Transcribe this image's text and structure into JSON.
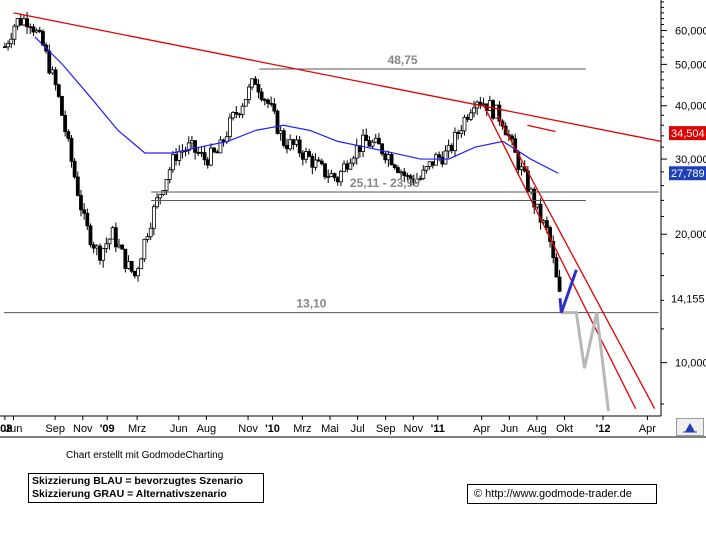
{
  "chart_data": {
    "type": "candlestick",
    "title": "",
    "y_axis": {
      "scale": "log",
      "ticks": [
        10000,
        20000,
        30000,
        40000,
        50000,
        60000
      ],
      "tick_labels": [
        "10,000",
        "20,000",
        "30,000",
        "40,000",
        "50,000",
        "60,000"
      ],
      "range": [
        7500,
        70000
      ]
    },
    "x_axis": {
      "range": [
        "2008-05-25",
        "2012-05-15"
      ],
      "ticks": [
        {
          "label": "'08",
          "date": "2008-05-27",
          "bold": true
        },
        {
          "label": "Jun",
          "date": "2008-06-15",
          "bold": false
        },
        {
          "label": "Sep",
          "date": "2008-09-15",
          "bold": false
        },
        {
          "label": "Nov",
          "date": "2008-11-15",
          "bold": false
        },
        {
          "label": "'09",
          "date": "2009-01-08",
          "bold": true
        },
        {
          "label": "Mrz",
          "date": "2009-03-15",
          "bold": false
        },
        {
          "label": "Jun",
          "date": "2009-06-15",
          "bold": false
        },
        {
          "label": "Aug",
          "date": "2009-08-15",
          "bold": false
        },
        {
          "label": "Nov",
          "date": "2009-11-15",
          "bold": false
        },
        {
          "label": "'10",
          "date": "2010-01-08",
          "bold": true
        },
        {
          "label": "Mrz",
          "date": "2010-03-15",
          "bold": false
        },
        {
          "label": "Mai",
          "date": "2010-05-15",
          "bold": false
        },
        {
          "label": "Jul",
          "date": "2010-07-15",
          "bold": false
        },
        {
          "label": "Sep",
          "date": "2010-09-15",
          "bold": false
        },
        {
          "label": "Nov",
          "date": "2010-11-15",
          "bold": false
        },
        {
          "label": "'11",
          "date": "2011-01-08",
          "bold": true
        },
        {
          "label": "Apr",
          "date": "2011-04-15",
          "bold": false
        },
        {
          "label": "Jun",
          "date": "2011-06-15",
          "bold": false
        },
        {
          "label": "Aug",
          "date": "2011-08-15",
          "bold": false
        },
        {
          "label": "Okt",
          "date": "2011-10-15",
          "bold": false
        },
        {
          "label": "'12",
          "date": "2012-01-08",
          "bold": true
        },
        {
          "label": "Apr",
          "date": "2012-04-15",
          "bold": false
        }
      ]
    },
    "price_path": [
      [
        "2008-05-27",
        55000
      ],
      [
        "2008-06-20",
        63000
      ],
      [
        "2008-07-20",
        64000
      ],
      [
        "2008-08-20",
        55000
      ],
      [
        "2008-09-20",
        43000
      ],
      [
        "2008-10-20",
        30000
      ],
      [
        "2008-11-20",
        21000
      ],
      [
        "2008-12-20",
        18000
      ],
      [
        "2009-01-20",
        20000
      ],
      [
        "2009-02-20",
        17000
      ],
      [
        "2009-03-10",
        16000
      ],
      [
        "2009-04-10",
        21000
      ],
      [
        "2009-05-10",
        26000
      ],
      [
        "2009-06-10",
        31000
      ],
      [
        "2009-07-10",
        32000
      ],
      [
        "2009-08-10",
        30000
      ],
      [
        "2009-09-10",
        31000
      ],
      [
        "2009-10-10",
        37000
      ],
      [
        "2009-11-10",
        42000
      ],
      [
        "2009-12-01",
        46000
      ],
      [
        "2010-01-01",
        40000
      ],
      [
        "2010-02-01",
        33000
      ],
      [
        "2010-03-01",
        32000
      ],
      [
        "2010-04-01",
        30000
      ],
      [
        "2010-05-01",
        28000
      ],
      [
        "2010-06-01",
        27000
      ],
      [
        "2010-07-01",
        31000
      ],
      [
        "2010-08-01",
        33000
      ],
      [
        "2010-09-01",
        32000
      ],
      [
        "2010-10-01",
        30000
      ],
      [
        "2010-11-01",
        27000
      ],
      [
        "2010-12-01",
        27000
      ],
      [
        "2011-01-01",
        30000
      ],
      [
        "2011-02-01",
        31000
      ],
      [
        "2011-03-01",
        36000
      ],
      [
        "2011-04-01",
        42000
      ],
      [
        "2011-05-01",
        40000
      ],
      [
        "2011-06-01",
        37000
      ],
      [
        "2011-07-01",
        30000
      ],
      [
        "2011-08-01",
        25000
      ],
      [
        "2011-08-20",
        22000
      ],
      [
        "2011-09-10",
        20000
      ],
      [
        "2011-09-25",
        16000
      ],
      [
        "2011-10-05",
        14155
      ]
    ],
    "moving_average": {
      "color": "#2020ff",
      "points": [
        [
          "2008-08-01",
          58000
        ],
        [
          "2008-10-01",
          50000
        ],
        [
          "2008-12-01",
          42000
        ],
        [
          "2009-02-01",
          35000
        ],
        [
          "2009-04-01",
          31000
        ],
        [
          "2009-06-01",
          31000
        ],
        [
          "2009-08-01",
          32000
        ],
        [
          "2009-10-01",
          33000
        ],
        [
          "2009-12-01",
          35000
        ],
        [
          "2010-02-01",
          36000
        ],
        [
          "2010-04-01",
          35000
        ],
        [
          "2010-06-01",
          33000
        ],
        [
          "2010-08-01",
          32000
        ],
        [
          "2010-10-01",
          31000
        ],
        [
          "2010-12-01",
          30000
        ],
        [
          "2011-02-01",
          30000
        ],
        [
          "2011-04-01",
          32000
        ],
        [
          "2011-06-01",
          33000
        ],
        [
          "2011-08-01",
          30000
        ],
        [
          "2011-10-01",
          27789
        ]
      ]
    },
    "horizontal_levels": [
      {
        "label": "48,75",
        "value": 48750,
        "from": "2009-12-10",
        "to": "2011-12-01"
      },
      {
        "label": "25,11 - 23,99",
        "value": 25110,
        "from": "2009-04-15",
        "to": "2012-05-10"
      },
      {
        "label": "",
        "value": 23990,
        "from": "2009-04-15",
        "to": "2011-12-01"
      },
      {
        "label": "13,10",
        "value": 13100,
        "from": "2008-05-25",
        "to": "2012-05-10"
      }
    ],
    "trendlines": [
      {
        "color": "#e00000",
        "from": [
          "2008-06-15",
          66000
        ],
        "to": [
          "2012-05-15",
          33000
        ]
      },
      {
        "color": "#e00000",
        "from": [
          "2011-04-20",
          40000
        ],
        "to": [
          "2012-03-20",
          7800
        ]
      },
      {
        "color": "#e00000",
        "from": [
          "2011-05-20",
          38000
        ],
        "to": [
          "2012-05-01",
          7800
        ]
      },
      {
        "color": "#e00000",
        "from": [
          "2011-07-25",
          36000
        ],
        "to": [
          "2011-09-25",
          34800
        ]
      }
    ],
    "scenarios": {
      "blue": {
        "color": "#3030c0",
        "points": [
          [
            "2011-10-08",
            13100
          ],
          [
            "2011-11-10",
            16500
          ]
        ]
      },
      "gray": {
        "color": "#b8b8b8",
        "points": [
          [
            "2011-10-08",
            13100
          ],
          [
            "2011-11-10",
            13100
          ],
          [
            "2011-11-28",
            9700
          ],
          [
            "2011-12-25",
            13100
          ],
          [
            "2012-01-20",
            7700
          ]
        ]
      }
    },
    "price_markers": [
      {
        "label": "34,504",
        "value": 34504,
        "bg": "#e00000",
        "fg": "#ffffff"
      },
      {
        "label": "27,789",
        "value": 27789,
        "bg": "#1f3fb8",
        "fg": "#ffffff"
      },
      {
        "label": "14,155",
        "value": 14155,
        "bg": "#ffffff",
        "fg": "#000000"
      }
    ]
  },
  "footer": {
    "credit": "Chart erstellt mit GodmodeCharting",
    "legend_line1": "Skizzierung BLAU = bevorzugtes Szenario",
    "legend_line2": "Skizzierung GRAU = Alternativszenario",
    "url": "© http://www.godmode-trader.de"
  }
}
